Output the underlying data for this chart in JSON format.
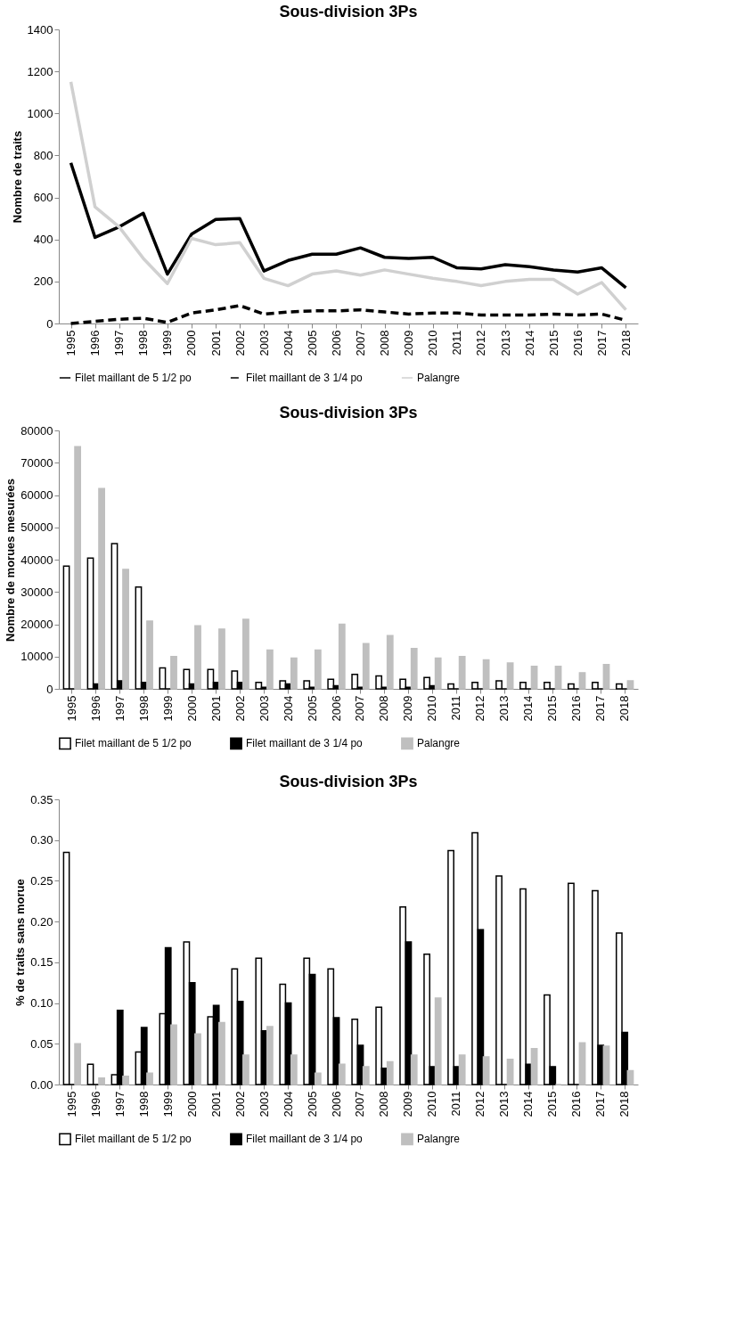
{
  "chart_data": [
    {
      "type": "line",
      "title": "Sous-division 3Ps",
      "ylabel": "Nombre de traits",
      "categories": [
        "1995",
        "1996",
        "1997",
        "1998",
        "1999",
        "2000",
        "2001",
        "2002",
        "2003",
        "2004",
        "2005",
        "2006",
        "2007",
        "2008",
        "2009",
        "2010",
        "2011",
        "2012",
        "2013",
        "2014",
        "2015",
        "2016",
        "2017",
        "2018"
      ],
      "series": [
        {
          "name": "Filet maillant de 5 1/2 po",
          "color": "#000000",
          "line_style": "solid",
          "values": [
            765,
            410,
            460,
            525,
            235,
            425,
            495,
            500,
            250,
            300,
            330,
            330,
            360,
            315,
            310,
            315,
            265,
            260,
            280,
            270,
            255,
            245,
            265,
            170
          ]
        },
        {
          "name": "Filet maillant de 3 1/4 po",
          "color": "#000000",
          "line_style": "dashed",
          "values": [
            0,
            10,
            20,
            25,
            5,
            50,
            65,
            85,
            45,
            55,
            60,
            60,
            65,
            55,
            45,
            50,
            50,
            40,
            40,
            40,
            45,
            40,
            45,
            15
          ]
        },
        {
          "name": "Palangre",
          "color": "#d0d0d0",
          "line_style": "solid",
          "values": [
            1150,
            555,
            460,
            310,
            190,
            405,
            375,
            385,
            215,
            180,
            235,
            250,
            230,
            255,
            235,
            215,
            200,
            180,
            200,
            210,
            210,
            140,
            195,
            65
          ]
        }
      ],
      "ylim": [
        0,
        1400
      ],
      "yticks": [
        0,
        200,
        400,
        600,
        800,
        1000,
        1200,
        1400
      ],
      "grid": false,
      "legend": "bottom"
    },
    {
      "type": "bar",
      "title": "Sous-division 3Ps",
      "ylabel": "Nombre de morues mesurées",
      "categories": [
        "1995",
        "1996",
        "1997",
        "1998",
        "1999",
        "2000",
        "2001",
        "2002",
        "2003",
        "2004",
        "2005",
        "2006",
        "2007",
        "2008",
        "2009",
        "2010",
        "2011",
        "2012",
        "2013",
        "2014",
        "2015",
        "2016",
        "2017",
        "2018"
      ],
      "series": [
        {
          "name": "Filet maillant de 5 1/2 po",
          "color": "#ffffff",
          "values": [
            38000,
            40500,
            45000,
            31500,
            6500,
            6000,
            6000,
            5500,
            2000,
            2500,
            2500,
            3000,
            4500,
            4000,
            3000,
            3500,
            1500,
            2000,
            2500,
            2000,
            2000,
            1500,
            2000,
            1500
          ]
        },
        {
          "name": "Filet maillant de 3 1/4 po",
          "color": "#000000",
          "values": [
            0,
            1500,
            2500,
            2000,
            0,
            1500,
            2000,
            2000,
            500,
            1500,
            500,
            1000,
            500,
            500,
            500,
            1000,
            0,
            0,
            0,
            0,
            0,
            0,
            0,
            0
          ]
        },
        {
          "name": "Palangre",
          "color": "#bfbfbf",
          "values": [
            75000,
            62000,
            37000,
            21000,
            10000,
            19500,
            18500,
            21500,
            12000,
            9500,
            12000,
            20000,
            14000,
            16500,
            12500,
            9500,
            10000,
            9000,
            8000,
            7000,
            7000,
            5000,
            7500,
            2500
          ]
        }
      ],
      "ylim": [
        0,
        80000
      ],
      "yticks": [
        0,
        10000,
        20000,
        30000,
        40000,
        50000,
        60000,
        70000,
        80000
      ],
      "grid": false,
      "legend": "bottom"
    },
    {
      "type": "bar",
      "title": "Sous-division 3Ps",
      "ylabel": "% de traits sans morue",
      "categories": [
        "1995",
        "1996",
        "1997",
        "1998",
        "1999",
        "2000",
        "2001",
        "2002",
        "2003",
        "2004",
        "2005",
        "2006",
        "2007",
        "2008",
        "2009",
        "2010",
        "2011",
        "2012",
        "2013",
        "2014",
        "2015",
        "2016",
        "2017",
        "2018"
      ],
      "series": [
        {
          "name": "Filet maillant de 5 1/2 po",
          "color": "#ffffff",
          "values": [
            0.285,
            0.025,
            0.012,
            0.04,
            0.087,
            0.175,
            0.083,
            0.142,
            0.155,
            0.123,
            0.155,
            0.142,
            0.08,
            0.095,
            0.218,
            0.16,
            0.287,
            0.309,
            0.256,
            0.24,
            0.11,
            0.247,
            0.238,
            0.186
          ]
        },
        {
          "name": "Filet maillant de 3 1/4 po",
          "color": "#000000",
          "values": [
            0,
            0,
            0.091,
            0.07,
            0.168,
            0.125,
            0.097,
            0.102,
            0.066,
            0.1,
            0.135,
            0.082,
            0.048,
            0.02,
            0.175,
            0.022,
            0.022,
            0.19,
            0,
            0.025,
            0.022,
            0,
            0.048,
            0.064
          ]
        },
        {
          "name": "Palangre",
          "color": "#bfbfbf",
          "values": [
            0.05,
            0.008,
            0.01,
            0.014,
            0.073,
            0.062,
            0.076,
            0.036,
            0.071,
            0.036,
            0.014,
            0.025,
            0.022,
            0.028,
            0.036,
            0.106,
            0.036,
            0.034,
            0.031,
            0.044,
            0,
            0.051,
            0.047,
            0.017
          ]
        }
      ],
      "ylim": [
        0,
        0.35
      ],
      "yticks": [
        {
          "value": 0,
          "label": "0.00"
        },
        {
          "value": 0.05,
          "label": "0.05"
        },
        {
          "value": 0.1,
          "label": "0.10"
        },
        {
          "value": 0.15,
          "label": "0.15"
        },
        {
          "value": 0.2,
          "label": "0.20"
        },
        {
          "value": 0.25,
          "label": "0.25"
        },
        {
          "value": 0.3,
          "label": "0.30"
        },
        {
          "value": 0.35,
          "label": "0.35"
        }
      ],
      "grid": false,
      "legend": "bottom"
    }
  ]
}
